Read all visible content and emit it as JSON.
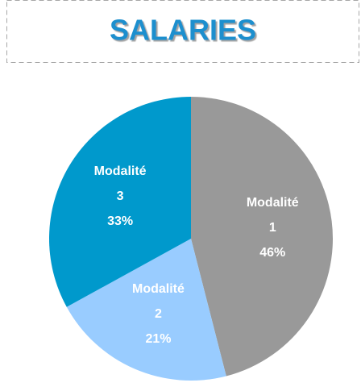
{
  "chart_data": {
    "type": "pie",
    "title": "SALARIES",
    "categories": [
      "Modalité 1",
      "Modalité 2",
      "Modalité 3"
    ],
    "values": [
      46,
      21,
      33
    ],
    "value_labels": [
      "46%",
      "21%",
      "33%"
    ],
    "colors": [
      "#999999",
      "#99ccff",
      "#0099cc"
    ]
  }
}
